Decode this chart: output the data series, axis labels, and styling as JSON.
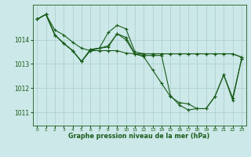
{
  "bg_color": "#cce8e8",
  "line_color": "#1a5c1a",
  "grid_color": "#aacccc",
  "xlabel": "Graphe pression niveau de la mer (hPa)",
  "xtick_labels": [
    "0",
    "1",
    "2",
    "3",
    "4",
    "5",
    "6",
    "7",
    "8",
    "9",
    "10",
    "11",
    "12",
    "13",
    "14",
    "15",
    "16",
    "17",
    "18",
    "19",
    "20",
    "21",
    "22",
    "23"
  ],
  "ytick_vals": [
    1011,
    1012,
    1013,
    1014
  ],
  "ylim": [
    1010.45,
    1015.45
  ],
  "xlim": [
    -0.5,
    23.5
  ],
  "series": [
    [
      1014.85,
      1015.05,
      1014.4,
      1014.2,
      1013.9,
      1013.65,
      1013.55,
      1013.55,
      1013.55,
      1013.55,
      1013.45,
      1013.42,
      1013.42,
      1013.42,
      1013.42,
      1013.42,
      1013.42,
      1013.42,
      1013.42,
      1013.42,
      1013.42,
      1013.42,
      1013.42,
      1013.28
    ],
    [
      1014.85,
      1015.05,
      1014.2,
      1013.85,
      1013.55,
      1013.1,
      1013.55,
      1013.65,
      1014.3,
      1014.6,
      1014.45,
      1013.5,
      1013.42,
      1013.42,
      1013.42,
      1013.42,
      1013.42,
      1013.42,
      1013.42,
      1013.42,
      1013.42,
      1013.42,
      1013.42,
      1013.28
    ],
    [
      1014.85,
      1015.05,
      1014.2,
      1013.85,
      1013.55,
      1013.1,
      1013.6,
      1013.65,
      1013.7,
      1014.25,
      1014.1,
      1013.42,
      1013.3,
      1012.75,
      1012.2,
      1011.65,
      1011.4,
      1011.35,
      1011.15,
      1011.15,
      1011.65,
      1012.55,
      1011.6,
      1013.2
    ],
    [
      1014.85,
      1015.05,
      1014.2,
      1013.85,
      1013.55,
      1013.1,
      1013.6,
      1013.65,
      1013.75,
      1014.25,
      1014.0,
      1013.4,
      1013.35,
      1013.35,
      1013.35,
      1011.7,
      1011.3,
      1011.1,
      1011.15,
      1011.15,
      1011.65,
      1012.55,
      1011.5,
      1013.2
    ]
  ]
}
